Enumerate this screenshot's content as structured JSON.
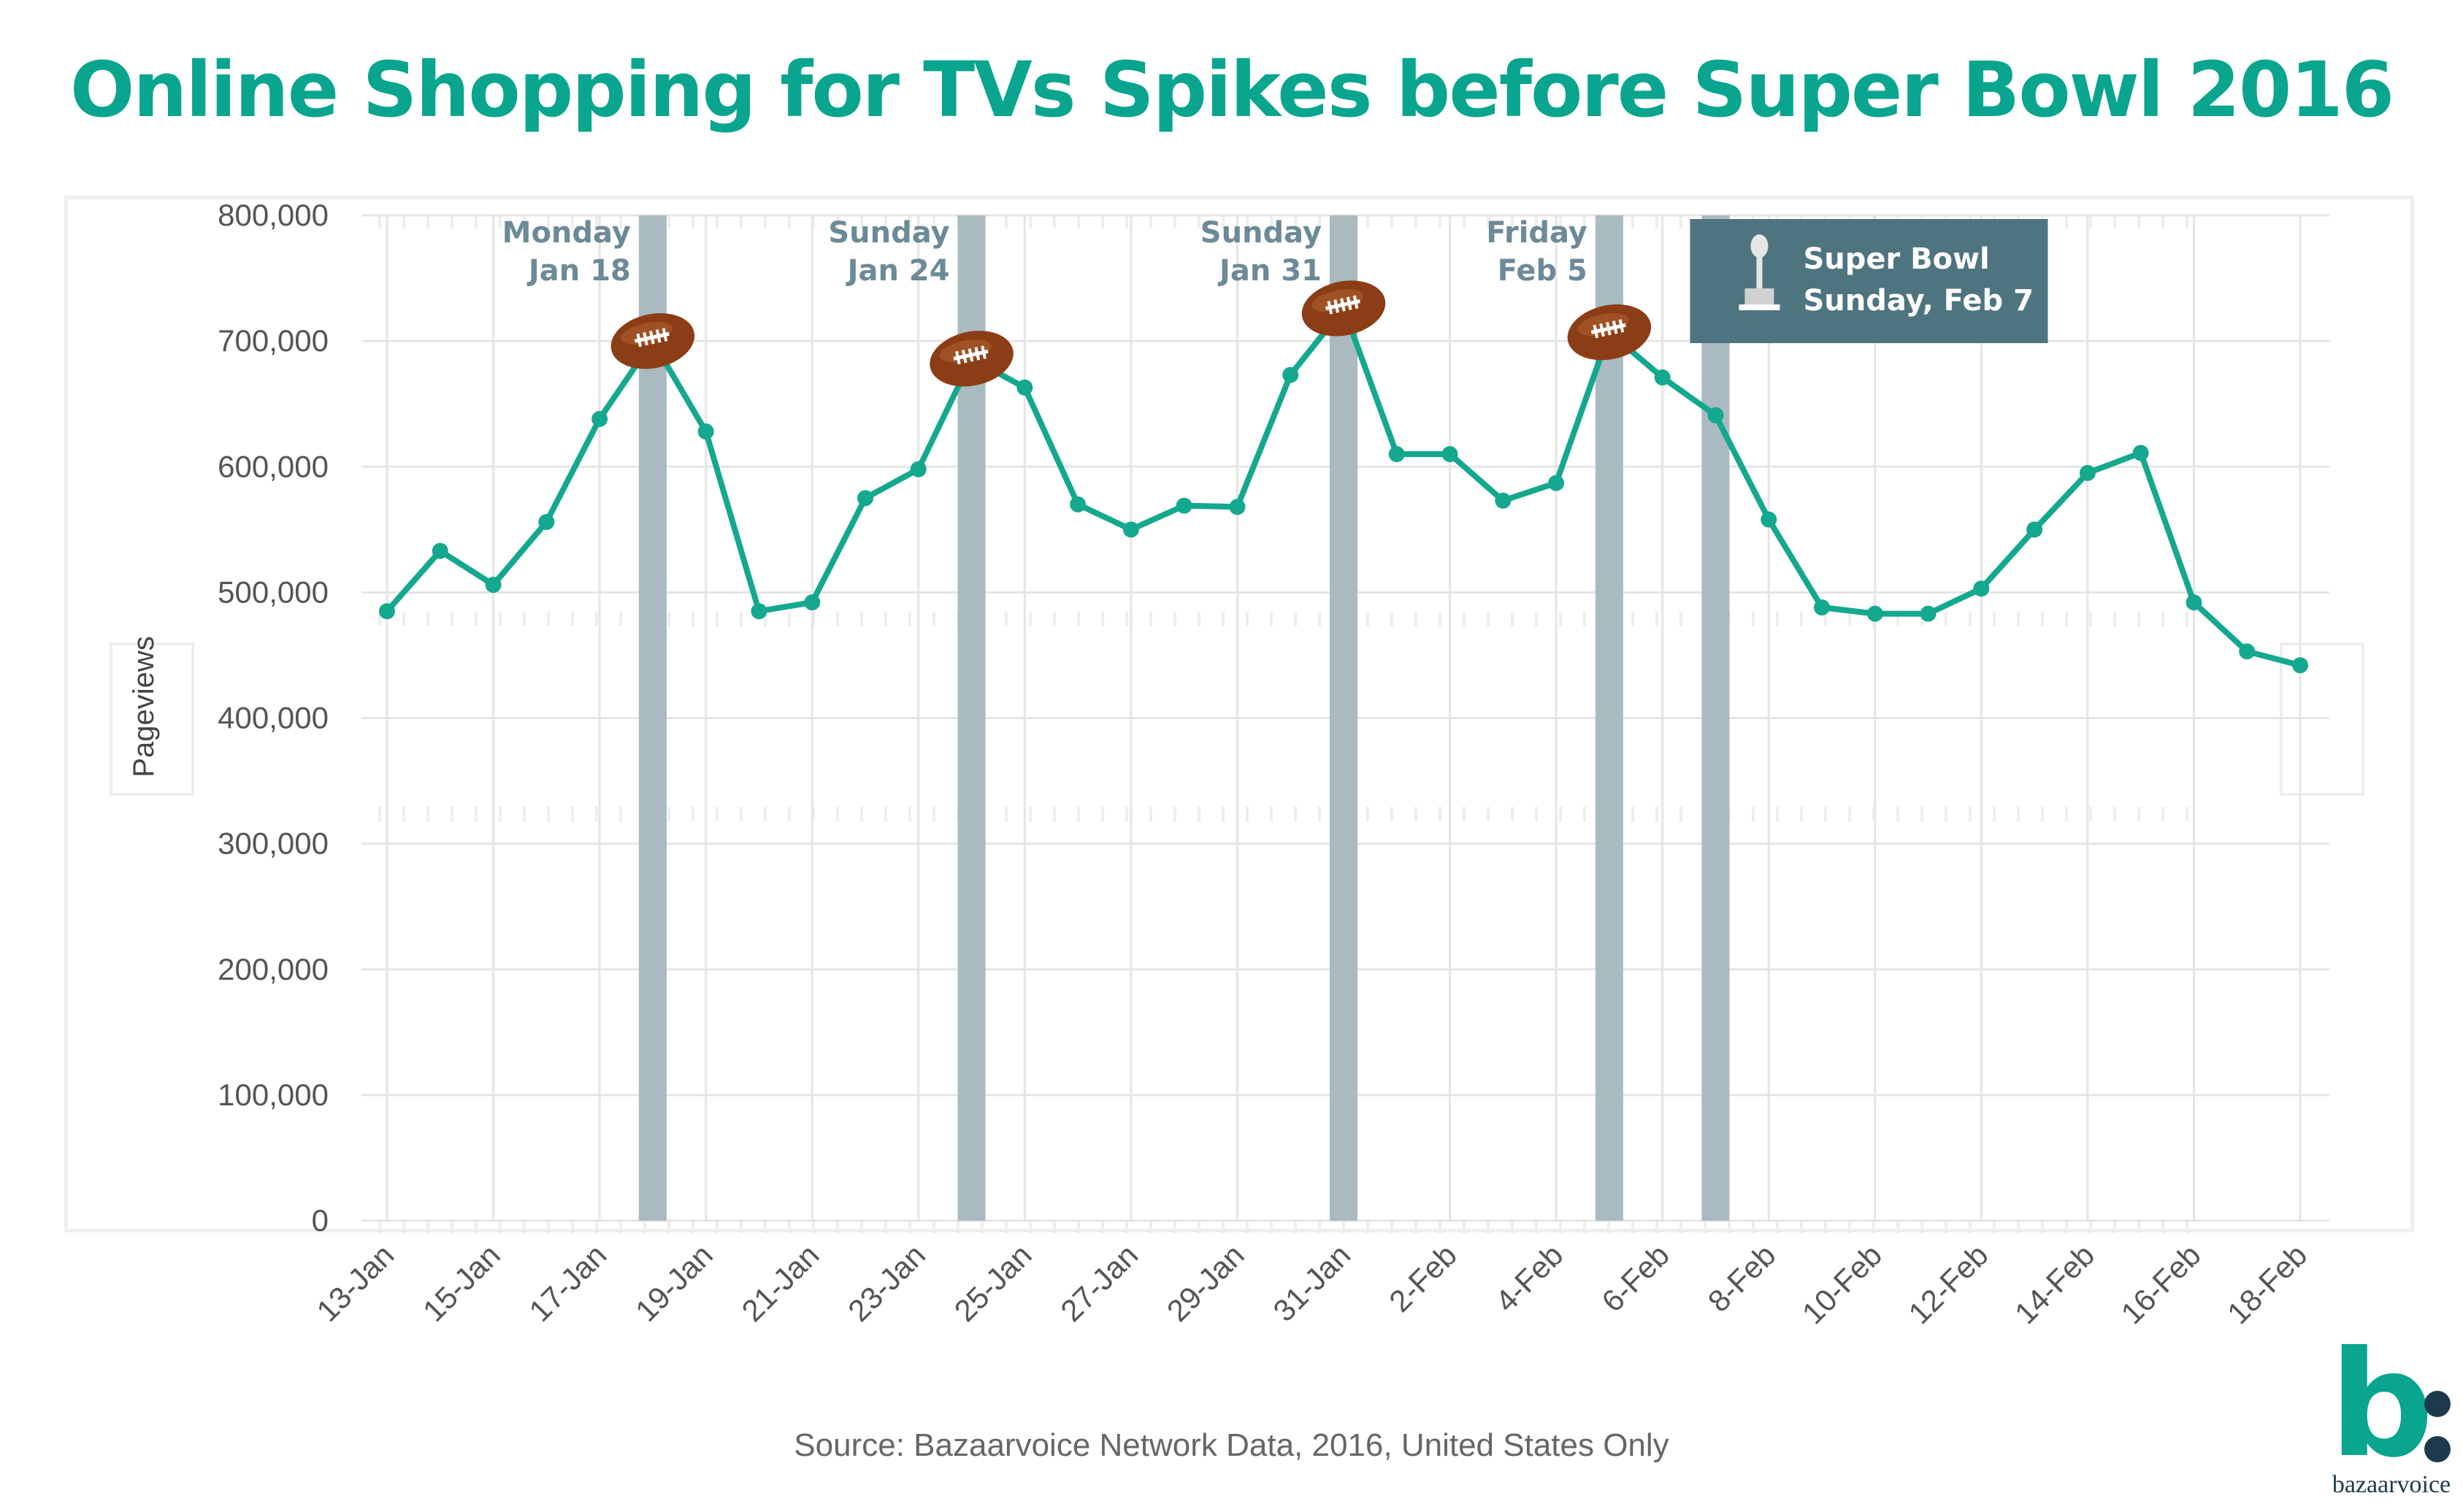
{
  "title": "Online Shopping for TVs Spikes before Super Bowl 2016",
  "source": "Source: Bazaarvoice Network Data, 2016, United States Only",
  "logo": {
    "mark": "b",
    "wordmark": "bazaarvoice"
  },
  "colors": {
    "title": "#0aa58e",
    "line": "#14a88f",
    "highlight_band": "#a9bac1",
    "annotation_text": "#6c8a97",
    "superbowl_box": "#4e7480",
    "football": "#8b3d16",
    "grid": "#e5e5e5",
    "axis_text": "#555555"
  },
  "chart_data": {
    "type": "line",
    "ylabel": "Pageviews",
    "xlabel": "",
    "ylim": [
      0,
      800000
    ],
    "yticks": [
      0,
      100000,
      200000,
      300000,
      400000,
      500000,
      600000,
      700000,
      800000
    ],
    "ytick_labels": [
      "0",
      "100,000",
      "200,000",
      "300,000",
      "400,000",
      "500,000",
      "600,000",
      "700,000",
      "800,000"
    ],
    "x_tick_labels": [
      "13-Jan",
      "15-Jan",
      "17-Jan",
      "19-Jan",
      "21-Jan",
      "23-Jan",
      "25-Jan",
      "27-Jan",
      "29-Jan",
      "31-Jan",
      "2-Feb",
      "4-Feb",
      "6-Feb",
      "8-Feb",
      "10-Feb",
      "12-Feb",
      "14-Feb",
      "16-Feb",
      "18-Feb"
    ],
    "grid": true,
    "legend": "none",
    "x": [
      "13-Jan",
      "14-Jan",
      "15-Jan",
      "16-Jan",
      "17-Jan",
      "18-Jan",
      "19-Jan",
      "20-Jan",
      "21-Jan",
      "22-Jan",
      "23-Jan",
      "24-Jan",
      "25-Jan",
      "26-Jan",
      "27-Jan",
      "28-Jan",
      "29-Jan",
      "30-Jan",
      "31-Jan",
      "1-Feb",
      "2-Feb",
      "3-Feb",
      "4-Feb",
      "5-Feb",
      "6-Feb",
      "7-Feb",
      "8-Feb",
      "9-Feb",
      "10-Feb",
      "11-Feb",
      "12-Feb",
      "13-Feb",
      "14-Feb",
      "15-Feb",
      "16-Feb",
      "17-Feb",
      "18-Feb"
    ],
    "series": [
      {
        "values": [
          485000,
          533000,
          506000,
          556000,
          638000,
          700000,
          628000,
          485000,
          492000,
          575000,
          598000,
          686000,
          663000,
          570000,
          550000,
          569000,
          568000,
          673000,
          726000,
          610000,
          610000,
          573000,
          587000,
          707000,
          671000,
          641000,
          558000,
          488000,
          483000,
          483000,
          503000,
          550000,
          595000,
          611000,
          492000,
          453000,
          442000
        ]
      }
    ],
    "highlights": [
      {
        "date": "18-Jan",
        "label_line1": "Monday",
        "label_line2": "Jan 18",
        "football": true
      },
      {
        "date": "24-Jan",
        "label_line1": "Sunday",
        "label_line2": "Jan 24",
        "football": true
      },
      {
        "date": "31-Jan",
        "label_line1": "Sunday",
        "label_line2": "Jan 31",
        "football": true
      },
      {
        "date": "5-Feb",
        "label_line1": "Friday",
        "label_line2": "Feb 5",
        "football": true
      },
      {
        "date": "7-Feb",
        "label_line1": "Super Bowl",
        "label_line2": "Sunday, Feb 7",
        "football": false,
        "boxed": true,
        "icon": "trophy-icon"
      }
    ]
  }
}
